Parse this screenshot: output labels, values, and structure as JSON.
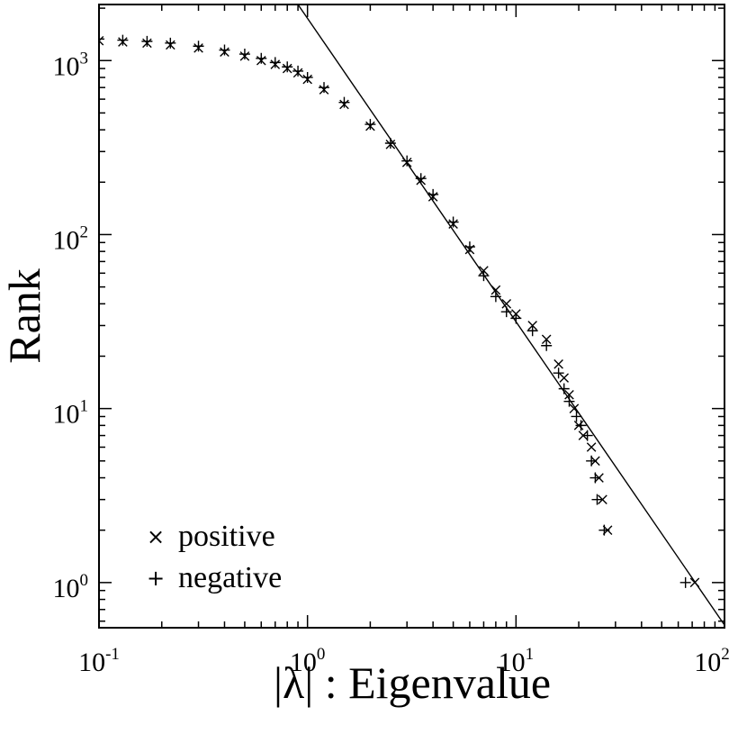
{
  "chart_data": {
    "type": "scatter",
    "xscale": "log",
    "yscale": "log",
    "xlabel": "|λ| : Eigenvalue",
    "ylabel": "Rank",
    "xlim": [
      0.1,
      100
    ],
    "ylim": [
      0.55,
      2100
    ],
    "grid": false,
    "legend_position": "bottom-left",
    "xticks": [
      {
        "base": "10",
        "exp": "-1",
        "value": 0.1
      },
      {
        "base": "10",
        "exp": "0",
        "value": 1
      },
      {
        "base": "10",
        "exp": "1",
        "value": 10
      },
      {
        "base": "10",
        "exp": "2",
        "value": 100
      }
    ],
    "yticks": [
      {
        "base": "10",
        "exp": "0",
        "value": 1
      },
      {
        "base": "10",
        "exp": "1",
        "value": 10
      },
      {
        "base": "10",
        "exp": "2",
        "value": 100
      },
      {
        "base": "10",
        "exp": "3",
        "value": 1000
      }
    ],
    "series": [
      {
        "name": "positive",
        "marker": "×",
        "points": [
          [
            0.1,
            1300
          ],
          [
            0.13,
            1280
          ],
          [
            0.17,
            1260
          ],
          [
            0.22,
            1230
          ],
          [
            0.3,
            1180
          ],
          [
            0.4,
            1120
          ],
          [
            0.5,
            1060
          ],
          [
            0.6,
            1000
          ],
          [
            0.7,
            950
          ],
          [
            0.8,
            900
          ],
          [
            0.9,
            850
          ],
          [
            1.0,
            780
          ],
          [
            1.2,
            680
          ],
          [
            1.5,
            560
          ],
          [
            2.0,
            420
          ],
          [
            2.5,
            330
          ],
          [
            3.0,
            260
          ],
          [
            3.5,
            205
          ],
          [
            4.0,
            165
          ],
          [
            5.0,
            115
          ],
          [
            6.0,
            82
          ],
          [
            7.0,
            62
          ],
          [
            8.0,
            48
          ],
          [
            9.0,
            40
          ],
          [
            10.0,
            35
          ],
          [
            12.0,
            30
          ],
          [
            14.0,
            25
          ],
          [
            16.0,
            18
          ],
          [
            17.0,
            15
          ],
          [
            18.0,
            12
          ],
          [
            19.0,
            10
          ],
          [
            20.0,
            8
          ],
          [
            21.0,
            7
          ],
          [
            23.0,
            6
          ],
          [
            24.0,
            5
          ],
          [
            25.0,
            4
          ],
          [
            26.0,
            3
          ],
          [
            27.5,
            2
          ],
          [
            72.0,
            1
          ]
        ]
      },
      {
        "name": "negative",
        "marker": "+",
        "points": [
          [
            0.1,
            1330
          ],
          [
            0.13,
            1310
          ],
          [
            0.17,
            1290
          ],
          [
            0.22,
            1260
          ],
          [
            0.3,
            1210
          ],
          [
            0.4,
            1150
          ],
          [
            0.5,
            1090
          ],
          [
            0.6,
            1030
          ],
          [
            0.7,
            975
          ],
          [
            0.8,
            920
          ],
          [
            0.9,
            870
          ],
          [
            1.0,
            800
          ],
          [
            1.2,
            700
          ],
          [
            1.5,
            575
          ],
          [
            2.0,
            430
          ],
          [
            2.5,
            335
          ],
          [
            3.0,
            265
          ],
          [
            3.5,
            210
          ],
          [
            4.0,
            170
          ],
          [
            5.0,
            118
          ],
          [
            6.0,
            85
          ],
          [
            7.0,
            58
          ],
          [
            8.0,
            44
          ],
          [
            9.0,
            36
          ],
          [
            10.0,
            33
          ],
          [
            12.0,
            28
          ],
          [
            14.0,
            23
          ],
          [
            16.0,
            16
          ],
          [
            17.0,
            13
          ],
          [
            18.0,
            11
          ],
          [
            19.5,
            9
          ],
          [
            20.5,
            8
          ],
          [
            22.0,
            7
          ],
          [
            23.0,
            5
          ],
          [
            24.0,
            4
          ],
          [
            24.5,
            3
          ],
          [
            26.5,
            2
          ],
          [
            65.0,
            1
          ]
        ]
      }
    ],
    "reference_line": {
      "style": "solid",
      "points": [
        [
          0.9,
          2100
        ],
        [
          100,
          0.57
        ]
      ]
    }
  }
}
